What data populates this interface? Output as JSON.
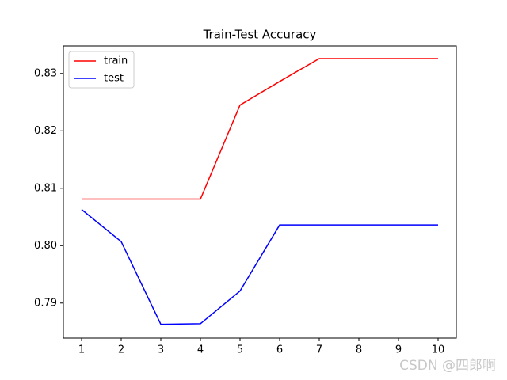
{
  "chart_data": {
    "type": "line",
    "title": "Train-Test Accuracy",
    "x": [
      1,
      2,
      3,
      4,
      5,
      6,
      7,
      8,
      9,
      10
    ],
    "series": [
      {
        "name": "train",
        "color": "#ff0000",
        "values": [
          0.8081,
          0.8081,
          0.8081,
          0.8081,
          0.8245,
          0.8286,
          0.8326,
          0.8326,
          0.8326,
          0.8326
        ]
      },
      {
        "name": "test",
        "color": "#0000ff",
        "values": [
          0.8063,
          0.8007,
          0.7863,
          0.7864,
          0.7921,
          0.8036,
          0.8036,
          0.8036,
          0.8036,
          0.8036
        ]
      }
    ],
    "xlim": [
      0.54,
      10.46
    ],
    "xticks": [
      1,
      2,
      3,
      4,
      5,
      6,
      7,
      8,
      9,
      10
    ],
    "ylim": [
      0.7839,
      0.8348
    ],
    "yticks": [
      {
        "value": 0.79,
        "label": "0.79"
      },
      {
        "value": 0.8,
        "label": "0.80"
      },
      {
        "value": 0.81,
        "label": "0.81"
      },
      {
        "value": 0.82,
        "label": "0.82"
      },
      {
        "value": 0.83,
        "label": "0.83"
      }
    ],
    "legend": "upper left"
  },
  "watermark": "CSDN @四郎啊"
}
